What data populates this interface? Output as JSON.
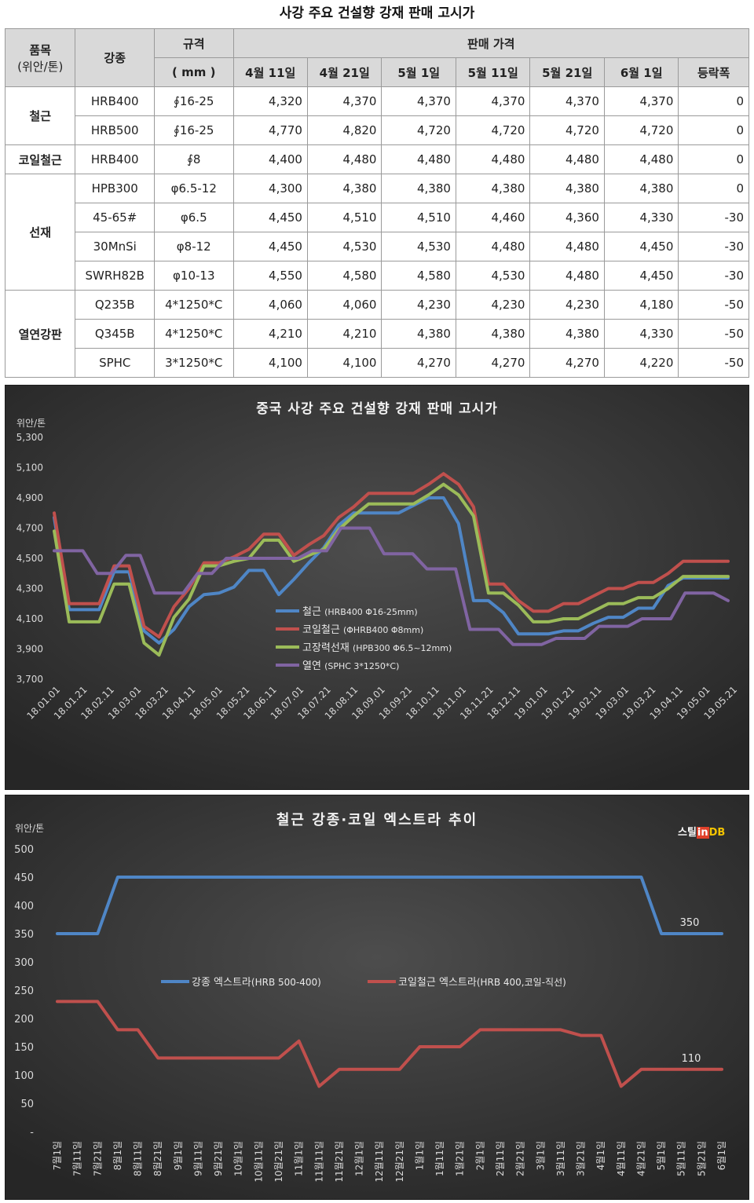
{
  "page_title": "사강 주요 건설향 강재 판매 고시가",
  "table": {
    "header": {
      "item": "품목",
      "unit": "(위안/톤)",
      "grade": "강종",
      "spec": "규격",
      "spec_unit": "( mm )",
      "price": "판매 가격",
      "dates": [
        "4월 11일",
        "4월 21일",
        "5월 1일",
        "5월 11일",
        "5월 21일",
        "6월 1일",
        "등락폭"
      ]
    },
    "groups": [
      {
        "name": "철근",
        "rows": [
          {
            "grade": "HRB400",
            "spec": "∮16-25",
            "prices": [
              "4,320",
              "4,370",
              "4,370",
              "4,370",
              "4,370",
              "4,370"
            ],
            "change": "0"
          },
          {
            "grade": "HRB500",
            "spec": "∮16-25",
            "prices": [
              "4,770",
              "4,820",
              "4,720",
              "4,720",
              "4,720",
              "4,720"
            ],
            "change": "0"
          }
        ]
      },
      {
        "name": "코일철근",
        "rows": [
          {
            "grade": "HRB400",
            "spec": "∮8",
            "prices": [
              "4,400",
              "4,480",
              "4,480",
              "4,480",
              "4,480",
              "4,480"
            ],
            "change": "0"
          }
        ]
      },
      {
        "name": "선재",
        "rows": [
          {
            "grade": "HPB300",
            "spec": "φ6.5-12",
            "prices": [
              "4,300",
              "4,380",
              "4,380",
              "4,380",
              "4,380",
              "4,380"
            ],
            "change": "0"
          },
          {
            "grade": "45-65#",
            "spec": "φ6.5",
            "prices": [
              "4,450",
              "4,510",
              "4,510",
              "4,460",
              "4,360",
              "4,330"
            ],
            "change": "-30"
          },
          {
            "grade": "30MnSi",
            "spec": "φ8-12",
            "prices": [
              "4,450",
              "4,530",
              "4,530",
              "4,480",
              "4,480",
              "4,450"
            ],
            "change": "-30"
          },
          {
            "grade": "SWRH82B",
            "spec": "φ10-13",
            "prices": [
              "4,550",
              "4,580",
              "4,580",
              "4,530",
              "4,480",
              "4,450"
            ],
            "change": "-30"
          }
        ]
      },
      {
        "name": "열연강판",
        "rows": [
          {
            "grade": "Q235B",
            "spec": "4*1250*C",
            "prices": [
              "4,060",
              "4,060",
              "4,230",
              "4,230",
              "4,230",
              "4,180"
            ],
            "change": "-50"
          },
          {
            "grade": "Q345B",
            "spec": "4*1250*C",
            "prices": [
              "4,210",
              "4,210",
              "4,380",
              "4,380",
              "4,380",
              "4,330"
            ],
            "change": "-50"
          },
          {
            "grade": "SPHC",
            "spec": "3*1250*C",
            "prices": [
              "4,100",
              "4,100",
              "4,270",
              "4,270",
              "4,270",
              "4,220"
            ],
            "change": "-50"
          }
        ]
      }
    ]
  },
  "colors": {
    "blue": "#4f86c6",
    "red": "#c0504d",
    "green": "#9bbb59",
    "purple": "#8064a2",
    "chart_bg": "#353535"
  },
  "brand": {
    "label_a": "스틸",
    "label_b": "in",
    "label_c": "DB"
  },
  "chart_data": [
    {
      "type": "line",
      "title": "중국 사강 주요 건설향 강재 판매 고시가",
      "ylabel": "위안/톤",
      "ylim": [
        3700,
        5300
      ],
      "yticks": [
        "3,700",
        "3,900",
        "4,100",
        "4,300",
        "4,500",
        "4,700",
        "4,900",
        "5,100",
        "5,300"
      ],
      "x_tick_labels": [
        "18.01.01",
        "18.01.21",
        "18.02.11",
        "18.03.01",
        "18.03.21",
        "18.04.11",
        "18.05.01",
        "18.05.21",
        "18.06.11",
        "18.07.01",
        "18.07.21",
        "18.08.11",
        "18.09.01",
        "18.09.21",
        "18.10.11",
        "18.11.01",
        "18.11.21",
        "18.12.11",
        "19.01.01",
        "19.01.21",
        "19.02.11",
        "19.03.01",
        "19.03.21",
        "19.04.11",
        "19.05.01",
        "19.05.21"
      ],
      "legend_position": "center-left",
      "series": [
        {
          "name": "철근",
          "detail": "(HRB400 Φ16-25mm)",
          "color": "#4f86c6",
          "values": [
            4770,
            4160,
            4160,
            4160,
            4410,
            4410,
            4020,
            3940,
            4030,
            4180,
            4260,
            4270,
            4310,
            4420,
            4420,
            4260,
            4360,
            4470,
            4570,
            4720,
            4800,
            4800,
            4800,
            4800,
            4850,
            4900,
            4900,
            4730,
            4220,
            4220,
            4140,
            4000,
            4000,
            4000,
            4020,
            4020,
            4070,
            4110,
            4110,
            4170,
            4170,
            4320,
            4370,
            4370,
            4370,
            4370
          ]
        },
        {
          "name": "코일철근",
          "detail": "(ΦHRB400 Φ8mm)",
          "color": "#c0504d",
          "values": [
            4800,
            4200,
            4200,
            4200,
            4450,
            4450,
            4050,
            3980,
            4180,
            4300,
            4470,
            4470,
            4510,
            4560,
            4660,
            4660,
            4520,
            4590,
            4650,
            4770,
            4840,
            4930,
            4930,
            4930,
            4930,
            4990,
            5060,
            4990,
            4840,
            4330,
            4330,
            4220,
            4150,
            4150,
            4200,
            4200,
            4250,
            4300,
            4300,
            4340,
            4340,
            4400,
            4480,
            4480,
            4480,
            4480
          ]
        },
        {
          "name": "고장력선재",
          "detail": "(HPB300 Φ6.5~12mm)",
          "color": "#9bbb59",
          "values": [
            4680,
            4080,
            4080,
            4080,
            4330,
            4330,
            3940,
            3860,
            4110,
            4230,
            4450,
            4450,
            4480,
            4500,
            4620,
            4620,
            4480,
            4520,
            4560,
            4690,
            4780,
            4860,
            4860,
            4860,
            4860,
            4920,
            4990,
            4920,
            4780,
            4270,
            4270,
            4190,
            4080,
            4080,
            4100,
            4100,
            4150,
            4200,
            4200,
            4240,
            4240,
            4300,
            4380,
            4380,
            4380,
            4380
          ]
        },
        {
          "name": "열연",
          "detail": "(SPHC 3*1250*C)",
          "color": "#8064a2",
          "values": [
            4550,
            4550,
            4550,
            4400,
            4400,
            4520,
            4520,
            4270,
            4270,
            4270,
            4400,
            4400,
            4500,
            4500,
            4500,
            4500,
            4500,
            4500,
            4550,
            4550,
            4700,
            4700,
            4700,
            4530,
            4530,
            4530,
            4430,
            4430,
            4430,
            4030,
            4030,
            4030,
            3930,
            3930,
            3930,
            3970,
            3970,
            3970,
            4050,
            4050,
            4050,
            4100,
            4100,
            4100,
            4270,
            4270,
            4270,
            4220
          ]
        }
      ]
    },
    {
      "type": "line",
      "title": "철근 강종·코일 엑스트라 추이",
      "ylabel": "위안/톤",
      "ylim": [
        0,
        500
      ],
      "yticks": [
        "-",
        "50",
        "100",
        "150",
        "200",
        "250",
        "300",
        "350",
        "400",
        "450",
        "500"
      ],
      "categories": [
        "7월1일",
        "7월11일",
        "7월21일",
        "8월1일",
        "8월11일",
        "8월21일",
        "9월1일",
        "9월11일",
        "9월21일",
        "10월1일",
        "10월11일",
        "10월21일",
        "11월1일",
        "11월11일",
        "11월21일",
        "12월1일",
        "12월11일",
        "12월21일",
        "1월1일",
        "1월11일",
        "1월21일",
        "2월1일",
        "2월11일",
        "2월21일",
        "3월1일",
        "3월11일",
        "3월21일",
        "4월1일",
        "4월11일",
        "4월21일",
        "5월1일",
        "5월11일",
        "5월21일",
        "6월1일"
      ],
      "legend_position": "middle",
      "annotations": [
        "350",
        "110"
      ],
      "series": [
        {
          "name": "강종 엑스트라",
          "detail": "(HRB 500-400)",
          "color": "#4f86c6",
          "values": [
            350,
            350,
            350,
            450,
            450,
            450,
            450,
            450,
            450,
            450,
            450,
            450,
            450,
            450,
            450,
            450,
            450,
            450,
            450,
            450,
            450,
            450,
            450,
            450,
            450,
            450,
            450,
            450,
            450,
            450,
            350,
            350,
            350,
            350
          ]
        },
        {
          "name": "코일철근 엑스트라",
          "detail": "(HRB 400,코일-직선)",
          "color": "#c0504d",
          "values": [
            230,
            230,
            230,
            180,
            180,
            130,
            130,
            130,
            130,
            130,
            130,
            130,
            160,
            80,
            110,
            110,
            110,
            110,
            150,
            150,
            150,
            180,
            180,
            180,
            180,
            180,
            170,
            170,
            80,
            110,
            110,
            110,
            110,
            110
          ]
        }
      ]
    }
  ]
}
